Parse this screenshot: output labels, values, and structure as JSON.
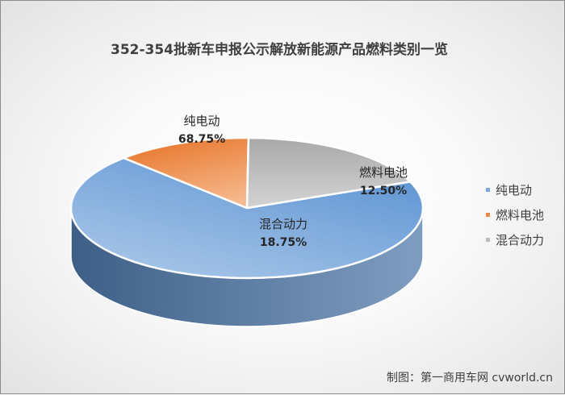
{
  "chart_data": {
    "type": "pie",
    "title": "352-354批新车申报公示解放新能源产品燃料类别一览",
    "categories": [
      "纯电动",
      "燃料电池",
      "混合动力"
    ],
    "values": [
      68.75,
      12.5,
      18.75
    ],
    "data_labels": [
      "68.75%",
      "12.50%",
      "18.75%"
    ],
    "colors": [
      "#7ea7d6",
      "#ec8a47",
      "#bcbcbc"
    ],
    "legend": "right",
    "style": "3d"
  },
  "credit": "制图：第一商用车网 cvworld.cn"
}
